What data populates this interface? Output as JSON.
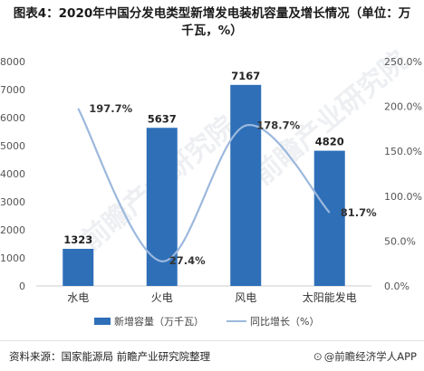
{
  "title": "图表4：2020年中国分发电类型新增发电装机容量及增长情况（单位：万千瓦，%）",
  "watermark": "前瞻产业研究院",
  "source": "资料来源：国家能源局 前瞻产业研究院整理",
  "brand": "@前瞻经济学人APP",
  "colors": {
    "bar": "#2e6fb8",
    "line": "#9cb8dd",
    "axis": "#cccccc",
    "text": "#555555"
  },
  "chart_data": {
    "type": "bar",
    "categories": [
      "水电",
      "火电",
      "风电",
      "太阳能发电"
    ],
    "series": [
      {
        "name": "新增容量（万千瓦）",
        "type": "bar",
        "axis": "left",
        "values": [
          1323,
          5637,
          7167,
          4820
        ]
      },
      {
        "name": "同比增长（%）",
        "type": "line",
        "axis": "right",
        "values": [
          197.7,
          27.4,
          178.7,
          81.7
        ]
      }
    ],
    "y_left": {
      "min": 0,
      "max": 8000,
      "ticks": [
        "0",
        "1000",
        "2000",
        "3000",
        "4000",
        "5000",
        "6000",
        "7000",
        "8000"
      ]
    },
    "y_right": {
      "min": 0,
      "max": 250,
      "ticks": [
        "0.0%",
        "50.0%",
        "100.0%",
        "150.0%",
        "200.0%",
        "250.0%"
      ]
    },
    "bar_labels": [
      "1323",
      "5637",
      "7167",
      "4820"
    ],
    "line_labels": [
      "197.7%",
      "27.4%",
      "178.7%",
      "81.7%"
    ],
    "legend": {
      "position": "bottom",
      "items": [
        "新增容量（万千瓦）",
        "同比增长（%）"
      ]
    }
  }
}
